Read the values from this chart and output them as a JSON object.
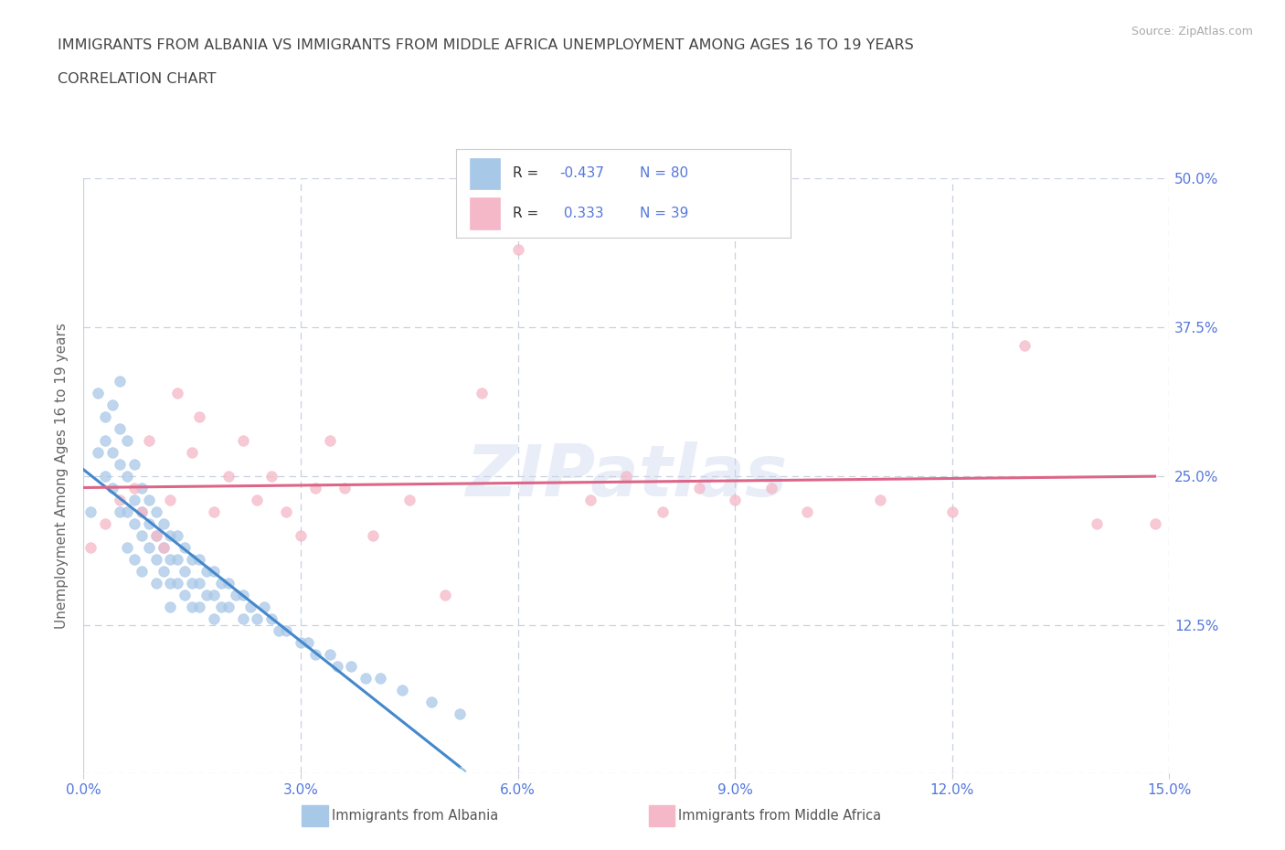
{
  "title_line1": "IMMIGRANTS FROM ALBANIA VS IMMIGRANTS FROM MIDDLE AFRICA UNEMPLOYMENT AMONG AGES 16 TO 19 YEARS",
  "title_line2": "CORRELATION CHART",
  "source": "Source: ZipAtlas.com",
  "ylabel": "Unemployment Among Ages 16 to 19 years",
  "xlim": [
    0.0,
    0.15
  ],
  "ylim": [
    0.0,
    0.5
  ],
  "xticks": [
    0.0,
    0.03,
    0.06,
    0.09,
    0.12,
    0.15
  ],
  "yticks": [
    0.0,
    0.125,
    0.25,
    0.375,
    0.5
  ],
  "xticklabels": [
    "0.0%",
    "3.0%",
    "6.0%",
    "9.0%",
    "12.0%",
    "15.0%"
  ],
  "yticklabels_right": [
    "",
    "12.5%",
    "25.0%",
    "37.5%",
    "50.0%"
  ],
  "r_albania": -0.437,
  "n_albania": 80,
  "r_middle_africa": 0.333,
  "n_middle_africa": 39,
  "color_albania": "#a8c8e8",
  "color_middle_africa": "#f5b8c8",
  "color_trend_albania": "#4488cc",
  "color_trend_albania_dash": "#88bbdd",
  "color_trend_middle_africa": "#dd6688",
  "color_axis_text": "#5577dd",
  "color_title": "#444444",
  "color_grid": "#c8d0e0",
  "color_source": "#aaaaaa",
  "watermark": "ZIPatlas",
  "albania_x": [
    0.001,
    0.002,
    0.002,
    0.003,
    0.003,
    0.003,
    0.004,
    0.004,
    0.004,
    0.005,
    0.005,
    0.005,
    0.005,
    0.006,
    0.006,
    0.006,
    0.006,
    0.007,
    0.007,
    0.007,
    0.007,
    0.008,
    0.008,
    0.008,
    0.008,
    0.009,
    0.009,
    0.009,
    0.01,
    0.01,
    0.01,
    0.01,
    0.011,
    0.011,
    0.011,
    0.012,
    0.012,
    0.012,
    0.012,
    0.013,
    0.013,
    0.013,
    0.014,
    0.014,
    0.014,
    0.015,
    0.015,
    0.015,
    0.016,
    0.016,
    0.016,
    0.017,
    0.017,
    0.018,
    0.018,
    0.018,
    0.019,
    0.019,
    0.02,
    0.02,
    0.021,
    0.022,
    0.022,
    0.023,
    0.024,
    0.025,
    0.026,
    0.027,
    0.028,
    0.03,
    0.031,
    0.032,
    0.034,
    0.035,
    0.037,
    0.039,
    0.041,
    0.044,
    0.048,
    0.052
  ],
  "albania_y": [
    0.22,
    0.27,
    0.32,
    0.28,
    0.3,
    0.25,
    0.31,
    0.27,
    0.24,
    0.33,
    0.29,
    0.26,
    0.22,
    0.28,
    0.25,
    0.22,
    0.19,
    0.26,
    0.23,
    0.21,
    0.18,
    0.24,
    0.22,
    0.2,
    0.17,
    0.23,
    0.21,
    0.19,
    0.22,
    0.2,
    0.18,
    0.16,
    0.21,
    0.19,
    0.17,
    0.2,
    0.18,
    0.16,
    0.14,
    0.2,
    0.18,
    0.16,
    0.19,
    0.17,
    0.15,
    0.18,
    0.16,
    0.14,
    0.18,
    0.16,
    0.14,
    0.17,
    0.15,
    0.17,
    0.15,
    0.13,
    0.16,
    0.14,
    0.16,
    0.14,
    0.15,
    0.15,
    0.13,
    0.14,
    0.13,
    0.14,
    0.13,
    0.12,
    0.12,
    0.11,
    0.11,
    0.1,
    0.1,
    0.09,
    0.09,
    0.08,
    0.08,
    0.07,
    0.06,
    0.05
  ],
  "middle_africa_x": [
    0.001,
    0.003,
    0.005,
    0.007,
    0.008,
    0.009,
    0.01,
    0.011,
    0.012,
    0.013,
    0.015,
    0.016,
    0.018,
    0.02,
    0.022,
    0.024,
    0.026,
    0.028,
    0.03,
    0.032,
    0.034,
    0.036,
    0.04,
    0.045,
    0.05,
    0.055,
    0.06,
    0.07,
    0.075,
    0.08,
    0.085,
    0.09,
    0.095,
    0.1,
    0.11,
    0.12,
    0.13,
    0.14,
    0.148
  ],
  "middle_africa_y": [
    0.19,
    0.21,
    0.23,
    0.24,
    0.22,
    0.28,
    0.2,
    0.19,
    0.23,
    0.32,
    0.27,
    0.3,
    0.22,
    0.25,
    0.28,
    0.23,
    0.25,
    0.22,
    0.2,
    0.24,
    0.28,
    0.24,
    0.2,
    0.23,
    0.15,
    0.32,
    0.44,
    0.23,
    0.25,
    0.22,
    0.24,
    0.23,
    0.24,
    0.22,
    0.23,
    0.22,
    0.36,
    0.21,
    0.21
  ],
  "albania_trend_x0": 0.0,
  "albania_trend_x1": 0.052,
  "albania_trend_x_dash0": 0.052,
  "albania_trend_x_dash1": 0.08,
  "middle_africa_trend_x0": 0.0,
  "middle_africa_trend_x1": 0.148
}
